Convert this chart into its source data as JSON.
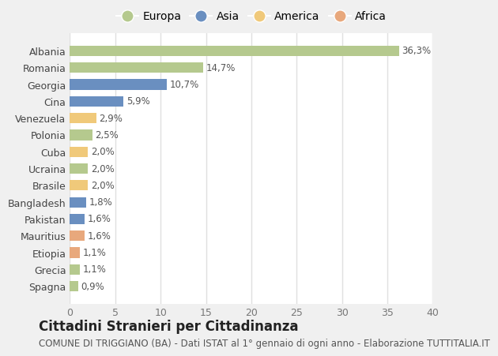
{
  "categories": [
    "Spagna",
    "Grecia",
    "Etiopia",
    "Mauritius",
    "Pakistan",
    "Bangladesh",
    "Brasile",
    "Ucraina",
    "Cuba",
    "Polonia",
    "Venezuela",
    "Cina",
    "Georgia",
    "Romania",
    "Albania"
  ],
  "values": [
    0.9,
    1.1,
    1.1,
    1.6,
    1.6,
    1.8,
    2.0,
    2.0,
    2.0,
    2.5,
    2.9,
    5.9,
    10.7,
    14.7,
    36.3
  ],
  "labels": [
    "0,9%",
    "1,1%",
    "1,1%",
    "1,6%",
    "1,6%",
    "1,8%",
    "2,0%",
    "2,0%",
    "2,0%",
    "2,5%",
    "2,9%",
    "5,9%",
    "10,7%",
    "14,7%",
    "36,3%"
  ],
  "continents": [
    "Europa",
    "Europa",
    "Africa",
    "Africa",
    "Asia",
    "Asia",
    "America",
    "Europa",
    "America",
    "Europa",
    "America",
    "Asia",
    "Asia",
    "Europa",
    "Europa"
  ],
  "continent_colors": {
    "Europa": "#b5c98e",
    "Asia": "#6a8fc0",
    "America": "#f0c97a",
    "Africa": "#e8a87c"
  },
  "legend_order": [
    "Europa",
    "Asia",
    "America",
    "Africa"
  ],
  "title": "Cittadini Stranieri per Cittadinanza",
  "subtitle": "COMUNE DI TRIGGIANO (BA) - Dati ISTAT al 1° gennaio di ogni anno - Elaborazione TUTTITALIA.IT",
  "xlim": [
    0,
    40
  ],
  "xticks": [
    0,
    5,
    10,
    15,
    20,
    25,
    30,
    35,
    40
  ],
  "fig_bg_color": "#f0f0f0",
  "plot_bg_color": "#ffffff",
  "grid_color": "#e0e0e0",
  "title_fontsize": 12,
  "subtitle_fontsize": 8.5,
  "label_fontsize": 8.5,
  "tick_fontsize": 9,
  "legend_fontsize": 10
}
